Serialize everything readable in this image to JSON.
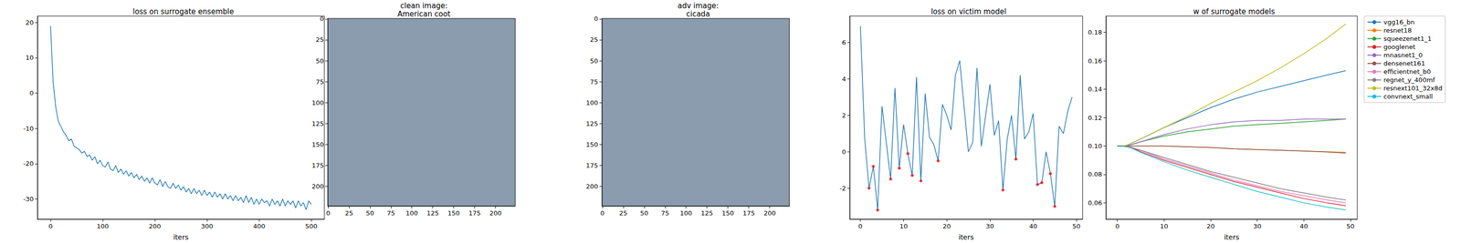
{
  "chart_data": [
    {
      "type": "line",
      "title": "loss on surrogate ensemble",
      "xlabel": "iters",
      "xlim": [
        -25,
        525
      ],
      "xticks": [
        0,
        100,
        200,
        300,
        400,
        500
      ],
      "ylim": [
        -35.7,
        21.8
      ],
      "yticks": [
        -30,
        -20,
        -10,
        0,
        10,
        20
      ],
      "grid": false,
      "x": [
        0,
        5,
        10,
        15,
        20,
        25,
        30,
        35,
        40,
        45,
        50,
        55,
        60,
        65,
        70,
        75,
        80,
        85,
        90,
        95,
        100,
        105,
        110,
        115,
        120,
        125,
        130,
        135,
        140,
        145,
        150,
        155,
        160,
        165,
        170,
        175,
        180,
        185,
        190,
        195,
        200,
        205,
        210,
        215,
        220,
        225,
        230,
        235,
        240,
        245,
        250,
        255,
        260,
        265,
        270,
        275,
        280,
        285,
        290,
        295,
        300,
        305,
        310,
        315,
        320,
        325,
        330,
        335,
        340,
        345,
        350,
        355,
        360,
        365,
        370,
        375,
        380,
        385,
        390,
        395,
        400,
        405,
        410,
        415,
        420,
        425,
        430,
        435,
        440,
        445,
        450,
        455,
        460,
        465,
        470,
        475,
        480,
        485,
        490,
        495,
        500
      ],
      "series": [
        {
          "color": "#1f77b4",
          "values": [
            19,
            3,
            -4,
            -8,
            -9.5,
            -11,
            -12,
            -13.5,
            -13,
            -15,
            -15.5,
            -16,
            -17,
            -16.5,
            -18,
            -17.5,
            -19,
            -18,
            -20,
            -19,
            -20.5,
            -21,
            -19.5,
            -21.5,
            -22,
            -20.5,
            -22.5,
            -21.5,
            -23,
            -22,
            -23.5,
            -22.5,
            -24,
            -23,
            -24.5,
            -23.5,
            -25,
            -24,
            -25.5,
            -24,
            -25.5,
            -26,
            -24.5,
            -26.5,
            -25,
            -26.5,
            -27,
            -25.5,
            -27,
            -26,
            -27.5,
            -26.5,
            -28,
            -27,
            -28.5,
            -27,
            -28.5,
            -27.5,
            -29,
            -27.5,
            -29,
            -28,
            -29.5,
            -28,
            -29.5,
            -28.5,
            -30,
            -28.5,
            -30,
            -29,
            -30.5,
            -29,
            -30.5,
            -29.5,
            -31,
            -29,
            -31,
            -29.5,
            -31.5,
            -30,
            -31.5,
            -30,
            -31,
            -30.5,
            -32,
            -30,
            -31.5,
            -30.5,
            -32,
            -30,
            -32,
            -30.5,
            -31.5,
            -30.5,
            -32.5,
            -30.5,
            -32,
            -31,
            -33,
            -30.5,
            -31.5
          ]
        }
      ]
    },
    {
      "type": "image",
      "title": "clean image:\nAmerican coot",
      "xlim": [
        -0.5,
        223.5
      ],
      "xticks": [
        0,
        25,
        50,
        75,
        100,
        125,
        150,
        175,
        200
      ],
      "ylim": [
        223.5,
        -0.5
      ],
      "yticks": [
        0,
        25,
        50,
        75,
        100,
        125,
        150,
        175,
        200
      ]
    },
    {
      "type": "image",
      "title": "adv image:\ncicada",
      "xlim": [
        -0.5,
        223.5
      ],
      "xticks": [
        0,
        25,
        50,
        75,
        100,
        125,
        150,
        175,
        200
      ],
      "ylim": [
        223.5,
        -0.5
      ],
      "yticks": [
        0,
        25,
        50,
        75,
        100,
        125,
        150,
        175,
        200
      ]
    },
    {
      "type": "line",
      "title": "loss on victim model",
      "xlabel": "iters",
      "xlim": [
        -2.45,
        51.45
      ],
      "xticks": [
        0,
        10,
        20,
        30,
        40,
        50
      ],
      "ylim": [
        -3.7,
        7.45
      ],
      "yticks": [
        -2,
        0,
        2,
        4,
        6
      ],
      "grid": false,
      "x": [
        0,
        1,
        2,
        3,
        4,
        5,
        6,
        7,
        8,
        9,
        10,
        11,
        12,
        13,
        14,
        15,
        16,
        17,
        18,
        19,
        20,
        21,
        22,
        23,
        24,
        25,
        26,
        27,
        28,
        29,
        30,
        31,
        32,
        33,
        34,
        35,
        36,
        37,
        38,
        39,
        40,
        41,
        42,
        43,
        44,
        45,
        46,
        47,
        48,
        49
      ],
      "series": [
        {
          "color": "#1f77b4",
          "values": [
            6.9,
            0.7,
            -2.0,
            -0.8,
            -3.2,
            2.5,
            0.5,
            -1.5,
            3.5,
            -0.9,
            1.5,
            -0.1,
            -1.3,
            4.1,
            -1.6,
            3.2,
            0.8,
            0.4,
            -0.5,
            2.6,
            2.0,
            1.2,
            4.2,
            5.0,
            2.5,
            0.0,
            0.5,
            4.6,
            0.3,
            2.0,
            3.7,
            0.9,
            1.7,
            -2.1,
            0.7,
            2.0,
            -0.4,
            4.2,
            0.7,
            1.1,
            2.1,
            -1.8,
            -1.7,
            0.0,
            -1.2,
            -3.0,
            1.4,
            1.0,
            2.2,
            3.0
          ]
        },
        {
          "type": "scatter",
          "color": "red",
          "marker": "circle",
          "x": [
            2,
            3,
            4,
            7,
            9,
            11,
            12,
            14,
            18,
            33,
            36,
            41,
            42,
            44,
            45
          ],
          "values": [
            -2.0,
            -0.8,
            -3.2,
            -1.5,
            -0.9,
            -0.1,
            -1.3,
            -1.6,
            -0.5,
            -2.1,
            -0.4,
            -1.8,
            -1.7,
            -1.2,
            -3.0
          ]
        }
      ]
    },
    {
      "type": "line",
      "title": "w of surrogate models",
      "xlabel": "iters",
      "xlim": [
        -2.45,
        51.45
      ],
      "xticks": [
        0,
        10,
        20,
        30,
        40,
        50
      ],
      "ylim": [
        0.0485,
        0.1915
      ],
      "yticks": [
        0.06,
        0.08,
        {
          "value": 0.1,
          "label": "0.10"
        },
        0.12,
        0.14,
        0.16,
        0.18
      ],
      "grid": false,
      "legend": "right",
      "x": [
        0,
        1,
        2,
        3,
        5,
        10,
        15,
        20,
        25,
        30,
        35,
        40,
        45,
        49
      ],
      "series": [
        {
          "name": "vgg16_bn",
          "color": "#1f77b4",
          "values": [
            0.1,
            0.1,
            0.1005,
            0.102,
            0.105,
            0.113,
            0.12,
            0.127,
            0.133,
            0.138,
            0.142,
            0.146,
            0.15,
            0.153
          ]
        },
        {
          "name": "resnet18",
          "color": "#ff7f0e",
          "values": [
            0.1,
            0.1,
            0.1,
            0.1,
            0.1,
            0.1,
            0.0995,
            0.099,
            0.098,
            0.0975,
            0.097,
            0.0965,
            0.096,
            0.0955
          ]
        },
        {
          "name": "squeezenet1_1",
          "color": "#2ca02c",
          "values": [
            0.1,
            0.1,
            0.1,
            0.101,
            0.103,
            0.107,
            0.11,
            0.112,
            0.114,
            0.115,
            0.116,
            0.117,
            0.118,
            0.119
          ]
        },
        {
          "name": "googlenet",
          "color": "#d62728",
          "values": [
            0.1,
            0.1,
            0.0995,
            0.099,
            0.096,
            0.09,
            0.085,
            0.08,
            0.075,
            0.071,
            0.067,
            0.063,
            0.06,
            0.058
          ]
        },
        {
          "name": "mnasnet1_0",
          "color": "#9467bd",
          "values": [
            0.1,
            0.1,
            0.1,
            0.101,
            0.103,
            0.108,
            0.112,
            0.115,
            0.117,
            0.118,
            0.118,
            0.119,
            0.119,
            0.119
          ]
        },
        {
          "name": "densenet161",
          "color": "#8c564b",
          "values": [
            0.1,
            0.1,
            0.1,
            0.1,
            0.1,
            0.1,
            0.0995,
            0.099,
            0.098,
            0.0975,
            0.097,
            0.0965,
            0.0958,
            0.095
          ]
        },
        {
          "name": "efficientnet_b0",
          "color": "#e377c2",
          "values": [
            0.1,
            0.1,
            0.0995,
            0.099,
            0.097,
            0.091,
            0.086,
            0.081,
            0.076,
            0.072,
            0.068,
            0.065,
            0.062,
            0.06
          ]
        },
        {
          "name": "regnet_y_400mf",
          "color": "#7f7f7f",
          "values": [
            0.1,
            0.1,
            0.0995,
            0.099,
            0.097,
            0.092,
            0.087,
            0.082,
            0.078,
            0.074,
            0.07,
            0.067,
            0.064,
            0.062
          ]
        },
        {
          "name": "resnext101_32x8d",
          "color": "#bcbd22",
          "values": [
            0.1,
            0.1,
            0.1005,
            0.102,
            0.105,
            0.113,
            0.121,
            0.13,
            0.138,
            0.146,
            0.155,
            0.165,
            0.176,
            0.186
          ]
        },
        {
          "name": "convnext_small",
          "color": "#17becf",
          "values": [
            0.1,
            0.1,
            0.0995,
            0.0985,
            0.0955,
            0.089,
            0.083,
            0.078,
            0.073,
            0.068,
            0.064,
            0.06,
            0.057,
            0.055
          ]
        }
      ]
    }
  ]
}
